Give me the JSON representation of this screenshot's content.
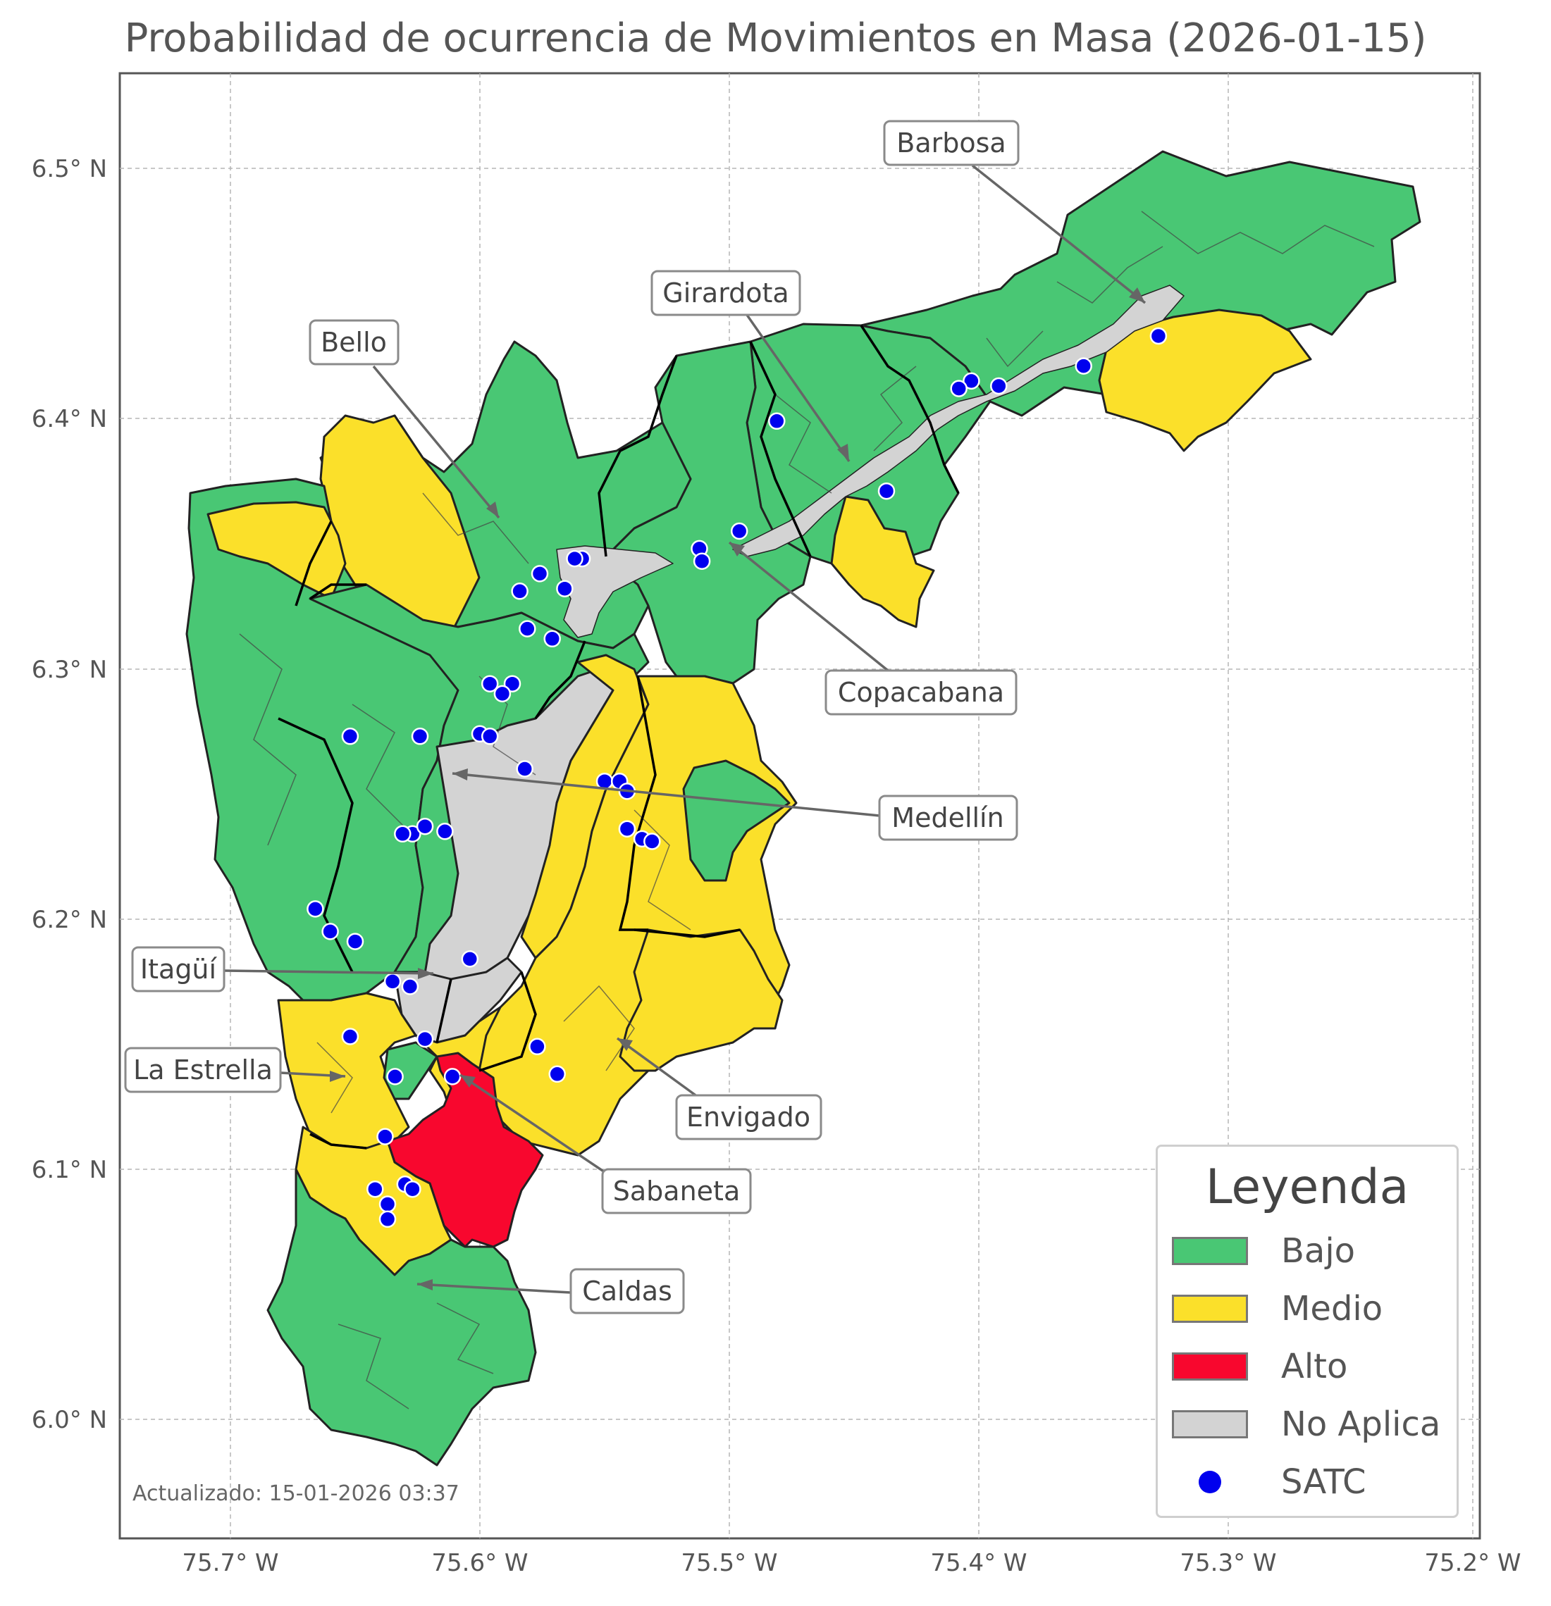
{
  "title": "Probabilidad de ocurrencia de Movimientos en Masa (2026-01-15)",
  "updated": "Actualizado: 15-01-2026 03:37",
  "axes": {
    "x_ticks": [
      "75.7° W",
      "75.6° W",
      "75.5° W",
      "75.4° W",
      "75.3° W",
      "75.2° W"
    ],
    "y_ticks": [
      "6.5° N",
      "6.4° N",
      "6.3° N",
      "6.2° N",
      "6.1° N",
      "6.0° N"
    ]
  },
  "colors": {
    "bajo": "#49c774",
    "medio": "#fbe02a",
    "alto": "#f8072e",
    "no_aplica": "#d3d3d3",
    "satc": "#0000ee"
  },
  "legend": {
    "title": "Leyenda",
    "items": [
      {
        "label": "Bajo",
        "color": "#49c774",
        "kind": "patch"
      },
      {
        "label": "Medio",
        "color": "#fbe02a",
        "kind": "patch"
      },
      {
        "label": "Alto",
        "color": "#f8072e",
        "kind": "patch"
      },
      {
        "label": "No Aplica",
        "color": "#d3d3d3",
        "kind": "patch"
      },
      {
        "label": "SATC",
        "color": "#0000ee",
        "kind": "dot"
      }
    ]
  },
  "municipalities": [
    {
      "name": "Barbosa",
      "risk": "Bajo"
    },
    {
      "name": "Girardota",
      "risk": "Bajo"
    },
    {
      "name": "Bello",
      "risk": "Bajo"
    },
    {
      "name": "Copacabana",
      "risk": "Bajo"
    },
    {
      "name": "Medellín",
      "risk": "Bajo"
    },
    {
      "name": "Itagüí",
      "risk": "No Aplica"
    },
    {
      "name": "La Estrella",
      "risk": "Medio"
    },
    {
      "name": "Envigado",
      "risk": "Medio"
    },
    {
      "name": "Sabaneta",
      "risk": "Alto"
    },
    {
      "name": "Caldas",
      "risk": "Bajo"
    }
  ],
  "satc_stations": [
    [
      -75.328,
      6.433
    ],
    [
      -75.358,
      6.421
    ],
    [
      -75.392,
      6.413
    ],
    [
      -75.403,
      6.415
    ],
    [
      -75.408,
      6.412
    ],
    [
      -75.481,
      6.399
    ],
    [
      -75.437,
      6.371
    ],
    [
      -75.496,
      6.355
    ],
    [
      -75.512,
      6.348
    ],
    [
      -75.511,
      6.343
    ],
    [
      -75.559,
      6.344
    ],
    [
      -75.562,
      6.344
    ],
    [
      -75.566,
      6.332
    ],
    [
      -75.576,
      6.338
    ],
    [
      -75.584,
      6.331
    ],
    [
      -75.581,
      6.316
    ],
    [
      -75.571,
      6.312
    ],
    [
      -75.587,
      6.294
    ],
    [
      -75.596,
      6.294
    ],
    [
      -75.591,
      6.29
    ],
    [
      -75.6,
      6.274
    ],
    [
      -75.596,
      6.273
    ],
    [
      -75.624,
      6.273
    ],
    [
      -75.652,
      6.273
    ],
    [
      -75.582,
      6.26
    ],
    [
      -75.55,
      6.255
    ],
    [
      -75.544,
      6.255
    ],
    [
      -75.541,
      6.251
    ],
    [
      -75.541,
      6.236
    ],
    [
      -75.535,
      6.232
    ],
    [
      -75.531,
      6.231
    ],
    [
      -75.627,
      6.234
    ],
    [
      -75.631,
      6.234
    ],
    [
      -75.622,
      6.237
    ],
    [
      -75.614,
      6.235
    ],
    [
      -75.666,
      6.204
    ],
    [
      -75.66,
      6.195
    ],
    [
      -75.65,
      6.191
    ],
    [
      -75.604,
      6.184
    ],
    [
      -75.635,
      6.175
    ],
    [
      -75.628,
      6.173
    ],
    [
      -75.652,
      6.153
    ],
    [
      -75.622,
      6.152
    ],
    [
      -75.577,
      6.149
    ],
    [
      -75.569,
      6.138
    ],
    [
      -75.634,
      6.137
    ],
    [
      -75.611,
      6.137
    ],
    [
      -75.638,
      6.113
    ],
    [
      -75.642,
      6.092
    ],
    [
      -75.63,
      6.094
    ],
    [
      -75.627,
      6.092
    ],
    [
      -75.637,
      6.086
    ],
    [
      -75.637,
      6.08
    ]
  ]
}
